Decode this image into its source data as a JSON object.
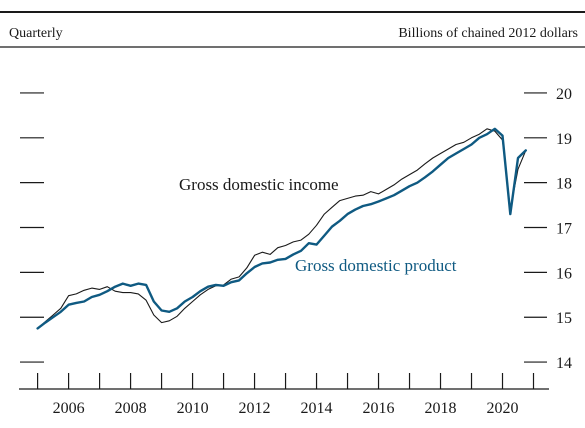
{
  "header": {
    "left_label": "Quarterly",
    "right_label": "Billions of chained 2012 dollars"
  },
  "chart_data": {
    "type": "line",
    "frequency": "Quarterly",
    "ylabel": "Billions of chained 2012 dollars",
    "ylim": [
      13.4,
      20.4
    ],
    "y_ticks": [
      14,
      15,
      16,
      17,
      18,
      19,
      20
    ],
    "xlim": [
      2004.4,
      2021.5
    ],
    "x_ticks": [
      2006,
      2008,
      2010,
      2012,
      2014,
      2016,
      2018,
      2020
    ],
    "grid": false,
    "colors": {
      "income": "#1a1a1a",
      "product": "#0f5a82"
    },
    "series": [
      {
        "name": "Gross domestic income",
        "x": [
          2005.0,
          2005.25,
          2005.5,
          2005.75,
          2006.0,
          2006.25,
          2006.5,
          2006.75,
          2007.0,
          2007.25,
          2007.5,
          2007.75,
          2008.0,
          2008.25,
          2008.5,
          2008.75,
          2009.0,
          2009.25,
          2009.5,
          2009.75,
          2010.0,
          2010.25,
          2010.5,
          2010.75,
          2011.0,
          2011.25,
          2011.5,
          2011.75,
          2012.0,
          2012.25,
          2012.5,
          2012.75,
          2013.0,
          2013.25,
          2013.5,
          2013.75,
          2014.0,
          2014.25,
          2014.5,
          2014.75,
          2015.0,
          2015.25,
          2015.5,
          2015.75,
          2016.0,
          2016.25,
          2016.5,
          2016.75,
          2017.0,
          2017.25,
          2017.5,
          2017.75,
          2018.0,
          2018.25,
          2018.5,
          2018.75,
          2019.0,
          2019.25,
          2019.5,
          2019.75,
          2020.0,
          2020.25,
          2020.5,
          2020.75
        ],
        "values": [
          14.75,
          14.9,
          15.05,
          15.2,
          15.48,
          15.52,
          15.6,
          15.65,
          15.62,
          15.68,
          15.58,
          15.55,
          15.55,
          15.52,
          15.38,
          15.05,
          14.88,
          14.92,
          15.02,
          15.2,
          15.35,
          15.5,
          15.62,
          15.7,
          15.72,
          15.85,
          15.9,
          16.1,
          16.38,
          16.45,
          16.4,
          16.55,
          16.6,
          16.68,
          16.72,
          16.85,
          17.05,
          17.3,
          17.45,
          17.6,
          17.65,
          17.7,
          17.72,
          17.8,
          17.75,
          17.85,
          17.95,
          18.08,
          18.18,
          18.28,
          18.42,
          18.55,
          18.65,
          18.75,
          18.85,
          18.9,
          19.0,
          19.08,
          19.2,
          19.15,
          18.95,
          17.4,
          18.3,
          18.72
        ]
      },
      {
        "name": "Gross domestic product",
        "x": [
          2005.0,
          2005.25,
          2005.5,
          2005.75,
          2006.0,
          2006.25,
          2006.5,
          2006.75,
          2007.0,
          2007.25,
          2007.5,
          2007.75,
          2008.0,
          2008.25,
          2008.5,
          2008.75,
          2009.0,
          2009.25,
          2009.5,
          2009.75,
          2010.0,
          2010.25,
          2010.5,
          2010.75,
          2011.0,
          2011.25,
          2011.5,
          2011.75,
          2012.0,
          2012.25,
          2012.5,
          2012.75,
          2013.0,
          2013.25,
          2013.5,
          2013.75,
          2014.0,
          2014.25,
          2014.5,
          2014.75,
          2015.0,
          2015.25,
          2015.5,
          2015.75,
          2016.0,
          2016.25,
          2016.5,
          2016.75,
          2017.0,
          2017.25,
          2017.5,
          2017.75,
          2018.0,
          2018.25,
          2018.5,
          2018.75,
          2019.0,
          2019.25,
          2019.5,
          2019.75,
          2020.0,
          2020.25,
          2020.5,
          2020.75
        ],
        "values": [
          14.75,
          14.88,
          15.0,
          15.12,
          15.28,
          15.32,
          15.35,
          15.45,
          15.5,
          15.58,
          15.68,
          15.75,
          15.7,
          15.75,
          15.72,
          15.35,
          15.15,
          15.12,
          15.2,
          15.35,
          15.45,
          15.58,
          15.68,
          15.72,
          15.7,
          15.78,
          15.82,
          15.98,
          16.12,
          16.2,
          16.22,
          16.28,
          16.3,
          16.4,
          16.48,
          16.65,
          16.62,
          16.82,
          17.02,
          17.15,
          17.3,
          17.4,
          17.48,
          17.52,
          17.58,
          17.65,
          17.72,
          17.82,
          17.92,
          18.0,
          18.12,
          18.25,
          18.4,
          18.55,
          18.65,
          18.75,
          18.85,
          19.0,
          19.08,
          19.2,
          19.05,
          17.3,
          18.55,
          18.72
        ]
      }
    ],
    "annotations": [
      {
        "text": "Gross domestic income",
        "series": "Gross domestic income"
      },
      {
        "text": "Gross domestic product",
        "series": "Gross domestic product"
      }
    ]
  }
}
